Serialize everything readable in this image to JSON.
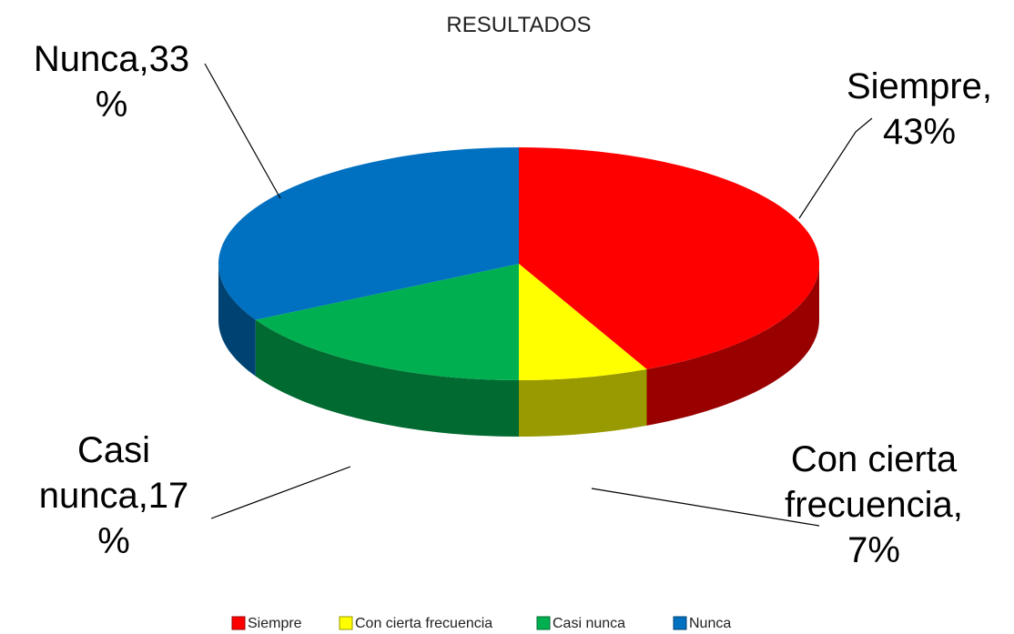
{
  "chart_data": {
    "type": "pie3d",
    "title": "RESULTADOS",
    "categories": [
      "Siempre",
      "Con cierta frecuencia",
      "Casi nunca",
      "Nunca"
    ],
    "values": [
      43,
      7,
      17,
      33
    ],
    "value_labels": [
      "Siempre, 43%",
      "Con cierta frecuencia,7%",
      "Casi nunca,17 %",
      "Nunca,33 %"
    ],
    "colors": [
      "#ff0000",
      "#ffff00",
      "#00b050",
      "#0070c0"
    ],
    "legend": "bottom"
  }
}
